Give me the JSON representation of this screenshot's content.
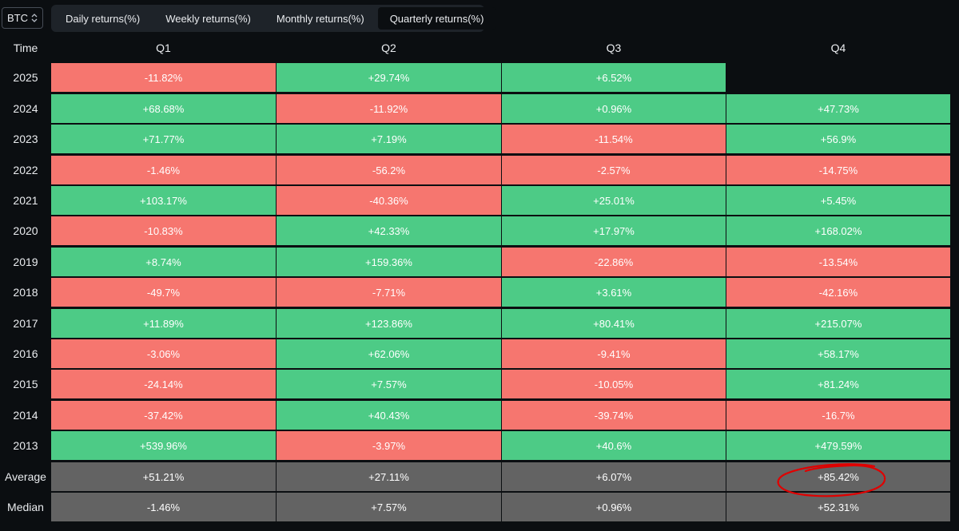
{
  "asset_selector": {
    "value": "BTC"
  },
  "tabs": [
    {
      "label": "Daily returns(%)",
      "active": false
    },
    {
      "label": "Weekly returns(%)",
      "active": false
    },
    {
      "label": "Monthly returns(%)",
      "active": false
    },
    {
      "label": "Quarterly returns(%)",
      "active": true
    }
  ],
  "table": {
    "time_header": "Time",
    "columns": [
      "Q1",
      "Q2",
      "Q3",
      "Q4"
    ],
    "rows": [
      {
        "year": "2025",
        "values": [
          "-11.82%",
          "+29.74%",
          "+6.52%",
          ""
        ]
      },
      {
        "year": "2024",
        "values": [
          "+68.68%",
          "-11.92%",
          "+0.96%",
          "+47.73%"
        ]
      },
      {
        "year": "2023",
        "values": [
          "+71.77%",
          "+7.19%",
          "-11.54%",
          "+56.9%"
        ]
      },
      {
        "year": "2022",
        "values": [
          "-1.46%",
          "-56.2%",
          "-2.57%",
          "-14.75%"
        ]
      },
      {
        "year": "2021",
        "values": [
          "+103.17%",
          "-40.36%",
          "+25.01%",
          "+5.45%"
        ]
      },
      {
        "year": "2020",
        "values": [
          "-10.83%",
          "+42.33%",
          "+17.97%",
          "+168.02%"
        ]
      },
      {
        "year": "2019",
        "values": [
          "+8.74%",
          "+159.36%",
          "-22.86%",
          "-13.54%"
        ]
      },
      {
        "year": "2018",
        "values": [
          "-49.7%",
          "-7.71%",
          "+3.61%",
          "-42.16%"
        ]
      },
      {
        "year": "2017",
        "values": [
          "+11.89%",
          "+123.86%",
          "+80.41%",
          "+215.07%"
        ]
      },
      {
        "year": "2016",
        "values": [
          "-3.06%",
          "+62.06%",
          "-9.41%",
          "+58.17%"
        ]
      },
      {
        "year": "2015",
        "values": [
          "-24.14%",
          "+7.57%",
          "-10.05%",
          "+81.24%"
        ]
      },
      {
        "year": "2014",
        "values": [
          "-37.42%",
          "+40.43%",
          "-39.74%",
          "-16.7%"
        ]
      },
      {
        "year": "2013",
        "values": [
          "+539.96%",
          "-3.97%",
          "+40.6%",
          "+479.59%"
        ]
      }
    ],
    "summary": [
      {
        "label": "Average",
        "values": [
          "+51.21%",
          "+27.11%",
          "+6.07%",
          "+85.42%"
        ]
      },
      {
        "label": "Median",
        "values": [
          "-1.46%",
          "+7.57%",
          "+0.96%",
          "+52.31%"
        ]
      }
    ]
  },
  "colors": {
    "positive": "#4dcb86",
    "negative": "#f6766f",
    "summary": "#636363",
    "annotation": "#e00000"
  }
}
